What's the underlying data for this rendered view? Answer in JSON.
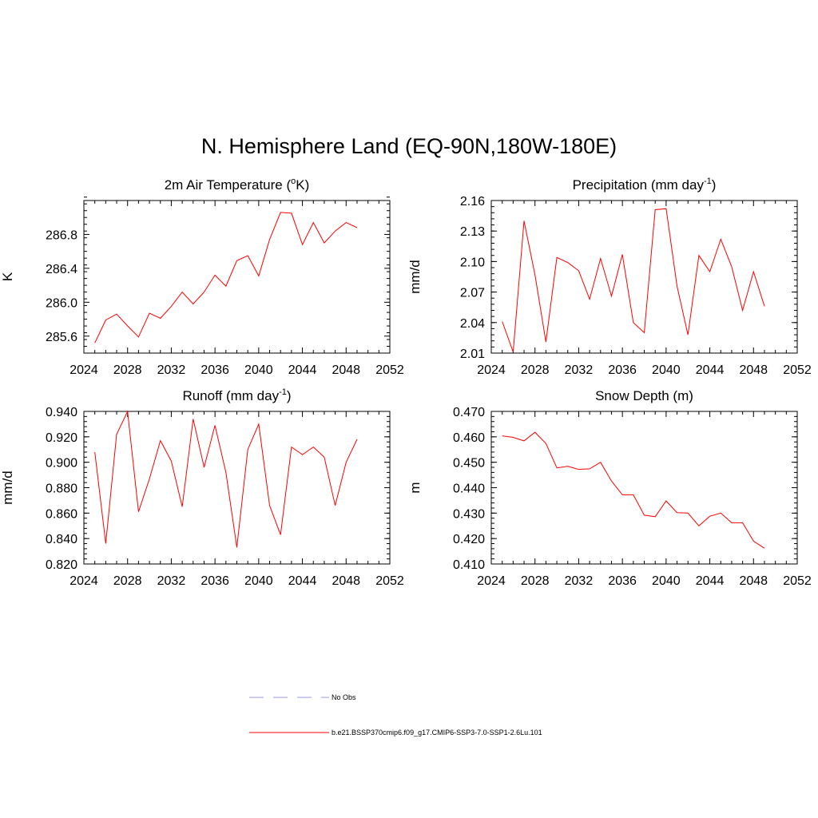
{
  "title": "N. Hemisphere Land (EQ-90N,180W-180E)",
  "legend": {
    "items": [
      {
        "label": "No Obs",
        "color": "#9999dd",
        "style": "dashed"
      },
      {
        "label": "b.e21.BSSP370cmip6.f09_g17.CMIP6-SSP3-7.0-SSP1-2.6Lu.101",
        "color": "#ff0000",
        "style": "solid"
      }
    ]
  },
  "chart_data": [
    {
      "type": "line",
      "title": "2m Air Temperature",
      "title_base": "2m Air Temperature (",
      "title_sup": "o",
      "title_tail": "K)",
      "xlabel": "",
      "ylabel": "K",
      "xlim": [
        2024,
        2052
      ],
      "ylim": [
        285.4,
        287.2
      ],
      "xticks": [
        "2024",
        "2028",
        "2032",
        "2036",
        "2040",
        "2044",
        "2048",
        "2052"
      ],
      "yticks": [
        "285.6",
        "286.0",
        "286.4",
        "286.8"
      ],
      "grid": false,
      "series": [
        {
          "color": "#ff0000",
          "x": [
            2025,
            2026,
            2027,
            2028,
            2029,
            2030,
            2031,
            2032,
            2033,
            2034,
            2035,
            2036,
            2037,
            2038,
            2039,
            2040,
            2041,
            2042,
            2043,
            2044,
            2045,
            2046,
            2047,
            2048,
            2049
          ],
          "y": [
            285.52,
            285.79,
            285.86,
            285.72,
            285.59,
            285.87,
            285.81,
            285.95,
            286.12,
            285.98,
            286.12,
            286.32,
            286.19,
            286.49,
            286.55,
            286.31,
            286.74,
            287.06,
            287.05,
            286.68,
            286.94,
            286.7,
            286.84,
            286.94,
            286.88
          ]
        }
      ]
    },
    {
      "type": "line",
      "title": "Precipitation",
      "title_base": "Precipitation (mm day",
      "title_sup": "-1",
      "title_tail": ")",
      "xlabel": "",
      "ylabel": "mm/d",
      "xlim": [
        2024,
        2052
      ],
      "ylim": [
        2.01,
        2.16
      ],
      "xticks": [
        "2024",
        "2028",
        "2032",
        "2036",
        "2040",
        "2044",
        "2048",
        "2052"
      ],
      "yticks": [
        "2.01",
        "2.04",
        "2.07",
        "2.10",
        "2.13",
        "2.16"
      ],
      "grid": false,
      "series": [
        {
          "color": "#ff0000",
          "x": [
            2025,
            2026,
            2027,
            2028,
            2029,
            2030,
            2031,
            2032,
            2033,
            2034,
            2035,
            2036,
            2037,
            2038,
            2039,
            2040,
            2041,
            2042,
            2043,
            2044,
            2045,
            2046,
            2047,
            2048,
            2049
          ],
          "y": [
            2.041,
            2.011,
            2.14,
            2.087,
            2.021,
            2.104,
            2.099,
            2.091,
            2.063,
            2.103,
            2.066,
            2.107,
            2.04,
            2.03,
            2.151,
            2.152,
            2.076,
            2.028,
            2.106,
            2.09,
            2.122,
            2.095,
            2.052,
            2.09,
            2.056
          ]
        }
      ]
    },
    {
      "type": "line",
      "title": "Runoff",
      "title_base": "Runoff (mm day",
      "title_sup": "-1",
      "title_tail": ")",
      "xlabel": "",
      "ylabel": "mm/d",
      "xlim": [
        2024,
        2052
      ],
      "ylim": [
        0.82,
        0.94
      ],
      "xticks": [
        "2024",
        "2028",
        "2032",
        "2036",
        "2040",
        "2044",
        "2048",
        "2052"
      ],
      "yticks": [
        "0.820",
        "0.840",
        "0.860",
        "0.880",
        "0.900",
        "0.920",
        "0.940"
      ],
      "grid": false,
      "series": [
        {
          "color": "#ff0000",
          "x": [
            2025,
            2026,
            2027,
            2028,
            2029,
            2030,
            2031,
            2032,
            2033,
            2034,
            2035,
            2036,
            2037,
            2038,
            2039,
            2040,
            2041,
            2042,
            2043,
            2044,
            2045,
            2046,
            2047,
            2048,
            2049
          ],
          "y": [
            0.908,
            0.836,
            0.922,
            0.94,
            0.861,
            0.887,
            0.917,
            0.901,
            0.865,
            0.934,
            0.896,
            0.929,
            0.892,
            0.833,
            0.91,
            0.93,
            0.866,
            0.843,
            0.912,
            0.906,
            0.912,
            0.904,
            0.866,
            0.9,
            0.918
          ]
        }
      ]
    },
    {
      "type": "line",
      "title": "Snow Depth (m)",
      "title_base": "Snow Depth (m)",
      "title_sup": "",
      "title_tail": "",
      "xlabel": "",
      "ylabel": "m",
      "xlim": [
        2024,
        2052
      ],
      "ylim": [
        0.41,
        0.47
      ],
      "xticks": [
        "2024",
        "2028",
        "2032",
        "2036",
        "2040",
        "2044",
        "2048",
        "2052"
      ],
      "yticks": [
        "0.410",
        "0.420",
        "0.430",
        "0.440",
        "0.450",
        "0.460",
        "0.470"
      ],
      "grid": false,
      "series": [
        {
          "color": "#ff0000",
          "x": [
            2025,
            2026,
            2027,
            2028,
            2029,
            2030,
            2031,
            2032,
            2033,
            2034,
            2035,
            2036,
            2037,
            2038,
            2039,
            2040,
            2041,
            2042,
            2043,
            2044,
            2045,
            2046,
            2047,
            2048,
            2049
          ],
          "y": [
            0.4604,
            0.4598,
            0.4584,
            0.4618,
            0.4574,
            0.4478,
            0.4484,
            0.4472,
            0.4474,
            0.45,
            0.4426,
            0.4372,
            0.4372,
            0.4292,
            0.4286,
            0.4348,
            0.4302,
            0.43,
            0.425,
            0.4288,
            0.43,
            0.4262,
            0.4262,
            0.419,
            0.4162
          ]
        }
      ]
    }
  ]
}
